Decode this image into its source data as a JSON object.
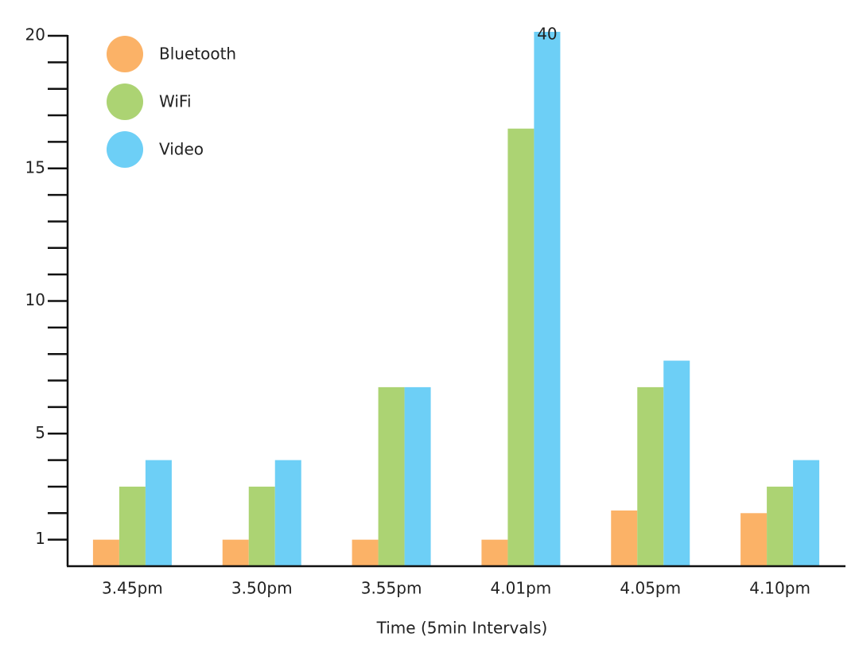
{
  "chart_data": {
    "type": "bar",
    "x_label": "Time (5min Intervals)",
    "categories": [
      "3.45pm",
      "3.50pm",
      "3.55pm",
      "4.01pm",
      "4.05pm",
      "4.10pm"
    ],
    "series": [
      {
        "name": "Bluetooth",
        "color": "#fbb267",
        "values": [
          1,
          1,
          1,
          1,
          2.1,
          2
        ]
      },
      {
        "name": "WiFi",
        "color": "#acd373",
        "values": [
          3,
          3,
          6.75,
          16.5,
          6.75,
          3
        ]
      },
      {
        "name": "Video",
        "color": "#6dcff6",
        "values": [
          4,
          4,
          6.75,
          40,
          7.75,
          4
        ],
        "value_labels": [
          null,
          null,
          null,
          "40",
          null,
          null
        ]
      }
    ],
    "ylim": [
      0,
      20
    ],
    "yticks": [
      1,
      5,
      10,
      15,
      20
    ],
    "minor_tick_step": 1,
    "legend": "upper-left",
    "grid": false
  }
}
